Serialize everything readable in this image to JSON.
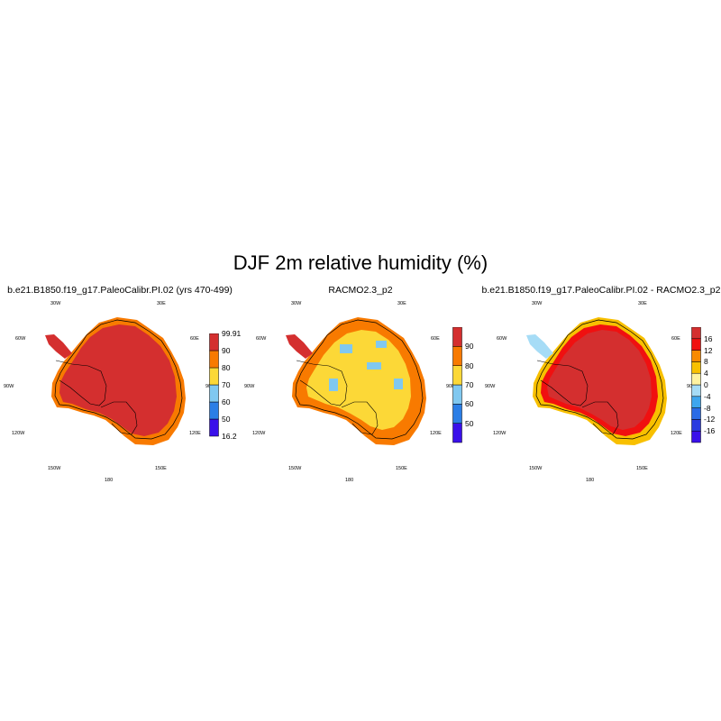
{
  "figure": {
    "title": "DJF 2m relative humidity (%)"
  },
  "colors": {
    "humidity": {
      "lt50": "#3a10ea",
      "50_60": "#2b7ee6",
      "60_70": "#80c8f0",
      "70_80": "#fcd837",
      "80_90": "#f87a00",
      "gt90": "#d42f2f"
    },
    "diff": {
      "lt_m16": "#3a10ea",
      "m16_m12": "#2a3be0",
      "m12_m8": "#2a6be6",
      "m8_m4": "#3ea6ee",
      "m4_0": "#a6dcf6",
      "0_4": "#fff2a0",
      "4_8": "#f8c000",
      "8_12": "#f88a00",
      "12_16": "#f01010",
      "gt16": "#d42f2f"
    },
    "coast": "#000000"
  },
  "lon_labels": [
    "30W",
    "30E",
    "60W",
    "60E",
    "90W",
    "90E",
    "120W",
    "120E",
    "150W",
    "150E",
    "180"
  ],
  "chart_data": [
    {
      "type": "heatmap",
      "title": "b.e21.B1850.f19_g17.PaleoCalibr.PI.02 (yrs 470-499)",
      "projection": "south-polar-stereographic",
      "colorbar": {
        "levels": [
          50,
          60,
          70,
          80,
          90
        ],
        "labels": [
          "16.2",
          "50",
          "60",
          "70",
          "80",
          "90",
          "99.91"
        ],
        "min": 16.2,
        "max": 99.91
      },
      "regions": [
        {
          "name": "interior plateau",
          "class": ">90"
        },
        {
          "name": "coastal margin",
          "class": "80-90"
        },
        {
          "name": "Antarctic Peninsula",
          "class": ">90"
        }
      ]
    },
    {
      "type": "heatmap",
      "title": "RACMO2.3_p2",
      "projection": "south-polar-stereographic",
      "colorbar": {
        "levels": [
          50,
          60,
          70,
          80,
          90
        ],
        "labels": [
          "50",
          "60",
          "70",
          "80",
          "90"
        ]
      },
      "regions": [
        {
          "name": "interior plateau",
          "class": "70-80"
        },
        {
          "name": "scattered interior patches",
          "class": "60-70"
        },
        {
          "name": "coastal margin",
          "class": "80-90"
        },
        {
          "name": "Antarctic Peninsula",
          "class": ">90"
        }
      ]
    },
    {
      "type": "heatmap",
      "title": "b.e21.B1850.f19_g17.PaleoCalibr.PI.02 - RACMO2.3_p2",
      "projection": "south-polar-stereographic",
      "colorbar": {
        "levels": [
          -16,
          -12,
          -8,
          -4,
          0,
          4,
          8,
          12,
          16
        ],
        "labels": [
          "-16",
          "-12",
          "-8",
          "-4",
          "0",
          "4",
          "8",
          "12",
          "16"
        ]
      },
      "regions": [
        {
          "name": "interior plateau",
          "class": ">16"
        },
        {
          "name": "inner coastal ring",
          "class": "12-16"
        },
        {
          "name": "outer coastal ring",
          "class": "4-12"
        },
        {
          "name": "Antarctic Peninsula tip",
          "class": "-4-0"
        }
      ]
    }
  ]
}
